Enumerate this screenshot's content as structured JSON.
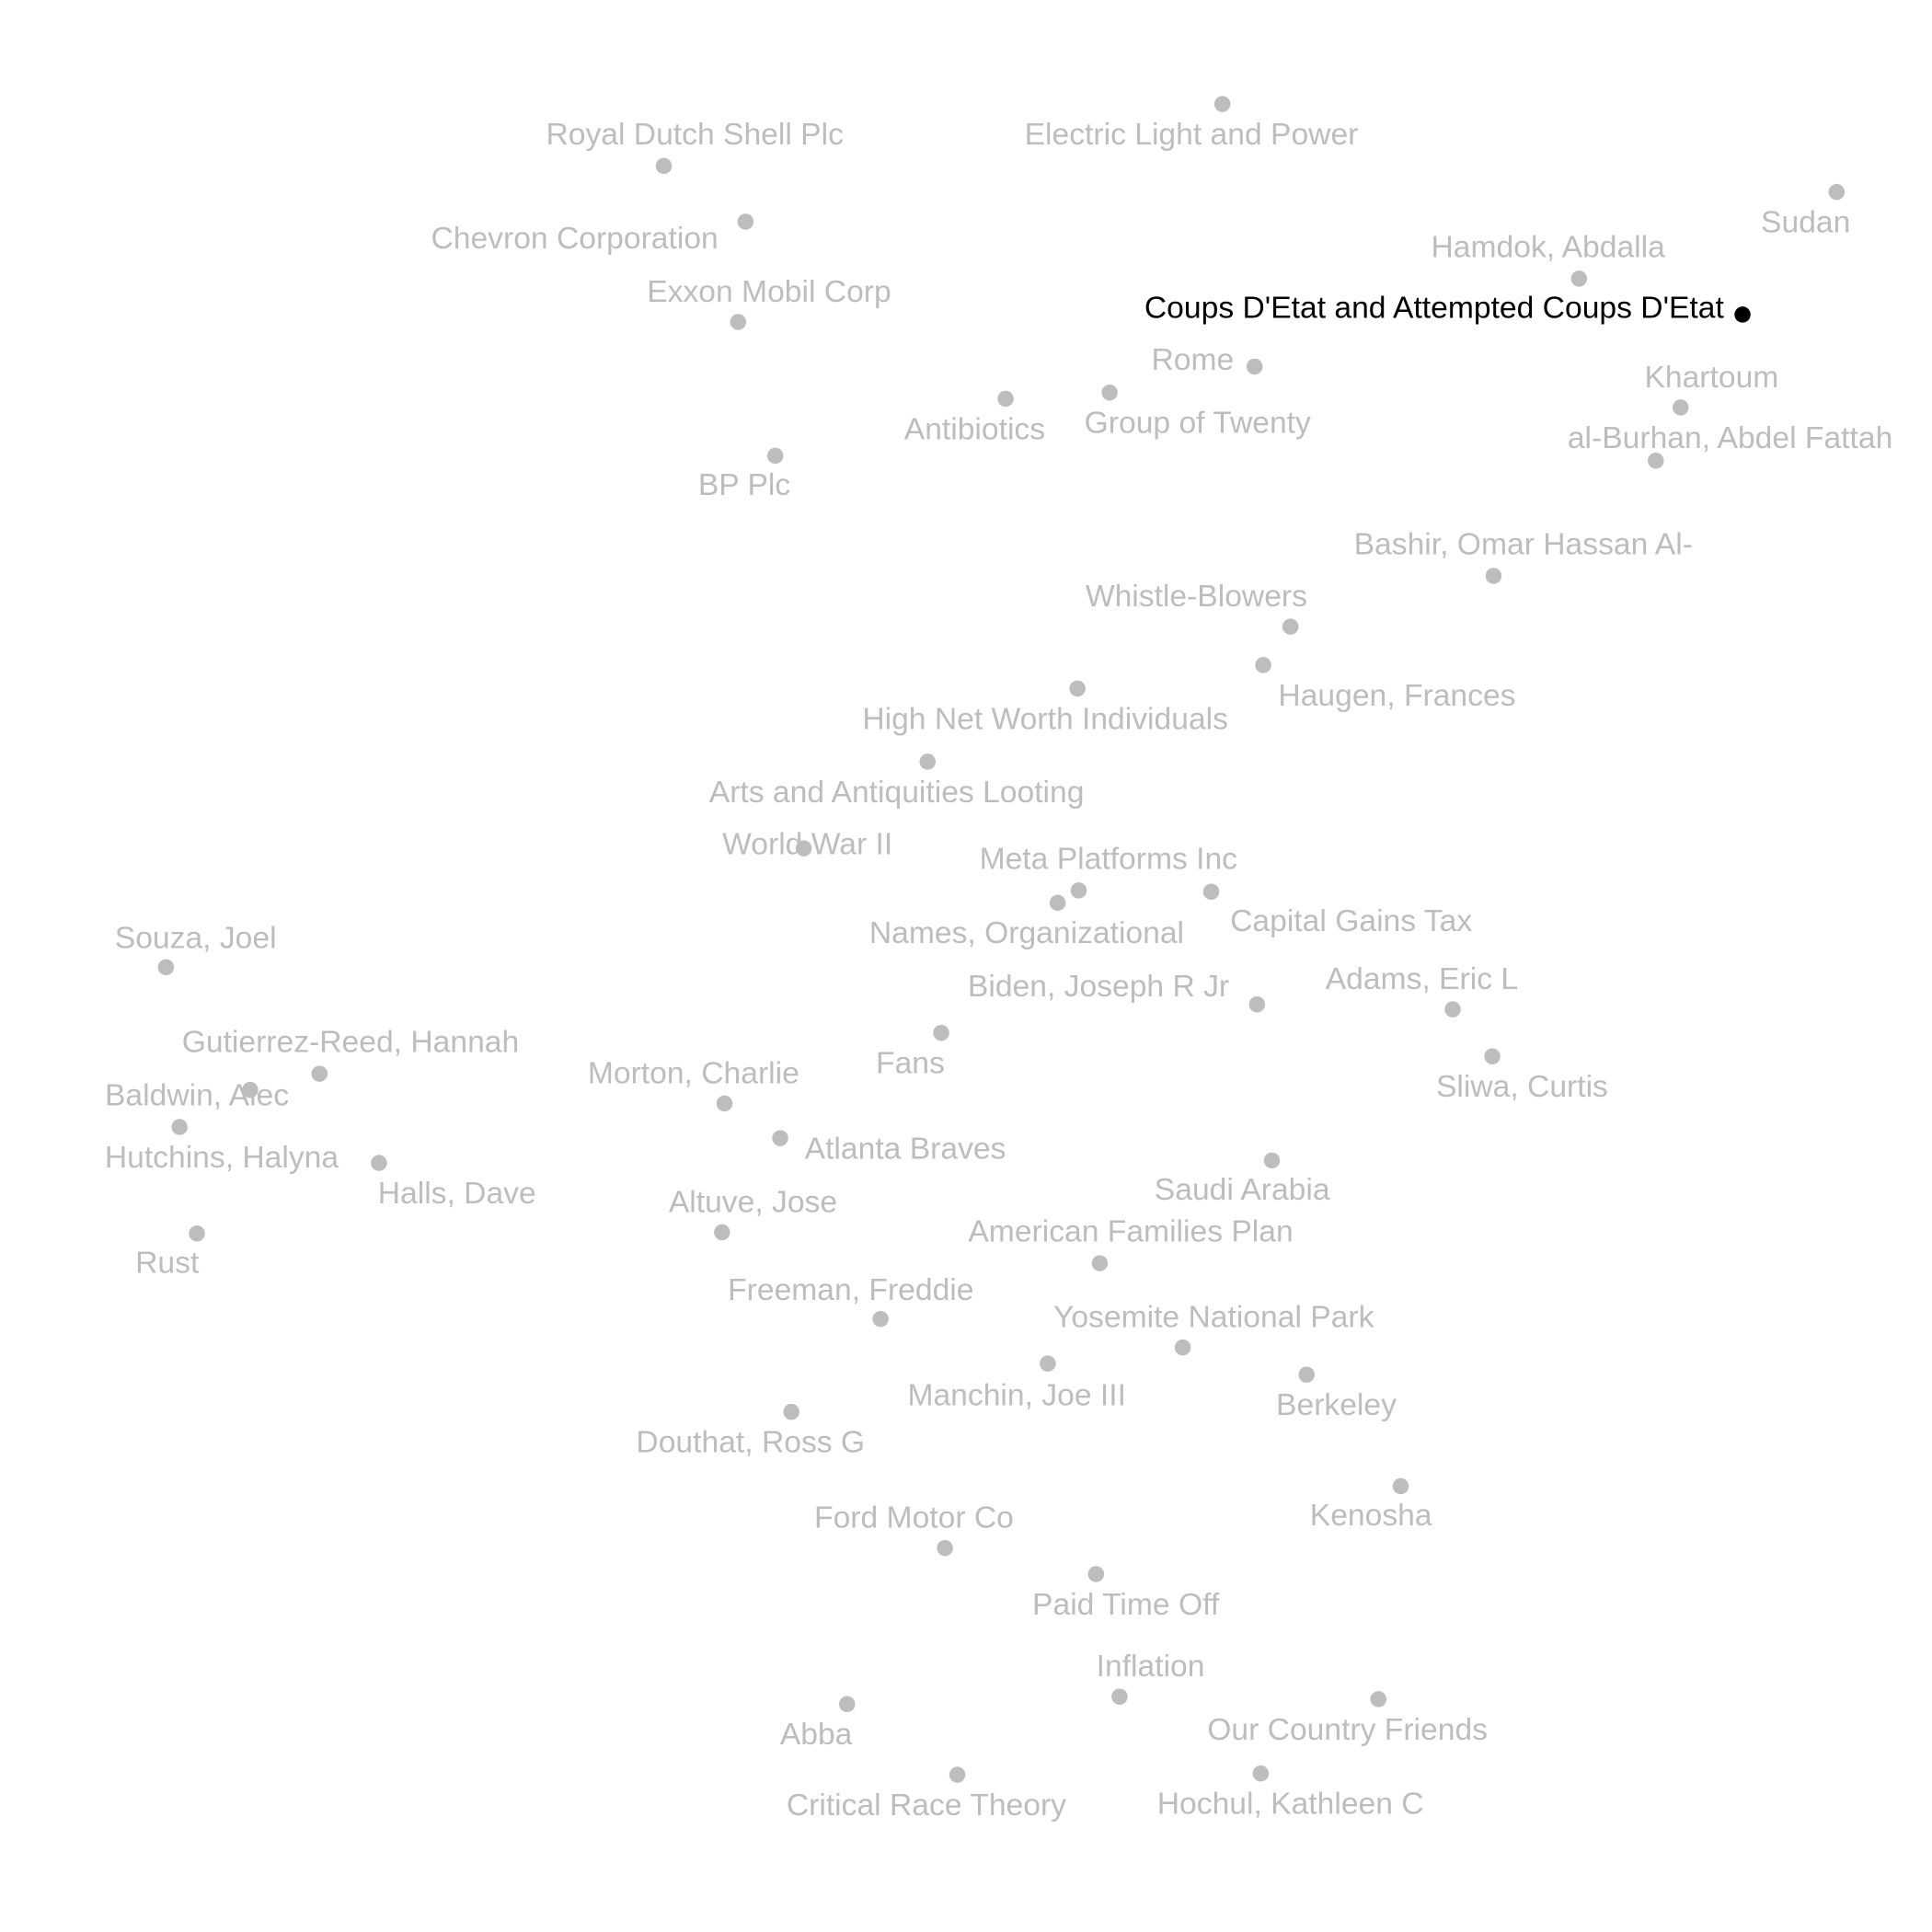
{
  "chart_data": {
    "type": "scatter",
    "title": "",
    "xlabel": "",
    "ylabel": "",
    "grid": false,
    "axes_visible": false,
    "colors": {
      "default": "#bdbdbd",
      "highlight": "#000000"
    },
    "highlighted": "Coups D'Etat and Attempted Coups D'Etat",
    "points": [
      {
        "label": "Electric Light and Power",
        "x": 2.07,
        "y": 6.96
      },
      {
        "label": "Royal Dutch Shell Plc",
        "x": -2.44,
        "y": 6.46
      },
      {
        "label": "Chevron Corporation",
        "x": -1.78,
        "y": 6.01
      },
      {
        "label": "Exxon Mobil Corp",
        "x": -1.84,
        "y": 5.2
      },
      {
        "label": "Sudan",
        "x": 7.03,
        "y": 6.25
      },
      {
        "label": "Hamdok, Abdalla",
        "x": 4.95,
        "y": 5.55
      },
      {
        "label": "Coups D'Etat and Attempted Coups D'Etat",
        "x": 6.27,
        "y": 5.26
      },
      {
        "label": "Rome",
        "x": 2.33,
        "y": 4.84
      },
      {
        "label": "Khartoum",
        "x": 5.77,
        "y": 4.51
      },
      {
        "label": "Antibiotics",
        "x": 0.32,
        "y": 4.58
      },
      {
        "label": "Group of Twenty",
        "x": 1.16,
        "y": 4.63
      },
      {
        "label": "al-Burhan, Abdel Fattah",
        "x": 5.57,
        "y": 4.08
      },
      {
        "label": "BP Plc",
        "x": -1.54,
        "y": 4.12
      },
      {
        "label": "Bashir, Omar Hassan Al-",
        "x": 4.26,
        "y": 3.15
      },
      {
        "label": "Whistle-Blowers",
        "x": 2.62,
        "y": 2.74
      },
      {
        "label": "Haugen, Frances",
        "x": 2.4,
        "y": 2.43
      },
      {
        "label": "High Net Worth Individuals",
        "x": 0.9,
        "y": 2.24
      },
      {
        "label": "Arts and Antiquities Looting",
        "x": -0.31,
        "y": 1.65
      },
      {
        "label": "World War II",
        "x": -1.31,
        "y": 0.95
      },
      {
        "label": "Meta Platforms Inc",
        "x": 0.91,
        "y": 0.61
      },
      {
        "label": "Names, Organizational",
        "x": 0.74,
        "y": 0.51
      },
      {
        "label": "Capital Gains Tax",
        "x": 1.98,
        "y": 0.6
      },
      {
        "label": "Souza, Joel",
        "x": -6.46,
        "y": -0.01
      },
      {
        "label": "Biden, Joseph R Jr",
        "x": 2.35,
        "y": -0.31
      },
      {
        "label": "Adams, Eric L",
        "x": 3.93,
        "y": -0.35
      },
      {
        "label": "Fans",
        "x": -0.2,
        "y": -0.54
      },
      {
        "label": "Gutierrez-Reed, Hannah",
        "x": -5.22,
        "y": -0.87
      },
      {
        "label": "Baldwin, Alec",
        "x": -5.78,
        "y": -1.0
      },
      {
        "label": "Morton, Charlie",
        "x": -1.95,
        "y": -1.11
      },
      {
        "label": "Sliwa, Curtis",
        "x": 4.25,
        "y": -0.73
      },
      {
        "label": "Hutchins, Halyna",
        "x": -6.35,
        "y": -1.3
      },
      {
        "label": "Atlanta Braves",
        "x": -1.5,
        "y": -1.39
      },
      {
        "label": "Halls, Dave",
        "x": -4.74,
        "y": -1.59
      },
      {
        "label": "Saudi Arabia",
        "x": 2.47,
        "y": -1.57
      },
      {
        "label": "Altuve, Jose",
        "x": -1.97,
        "y": -2.15
      },
      {
        "label": "Rust",
        "x": -6.21,
        "y": -2.16
      },
      {
        "label": "American Families Plan",
        "x": 1.08,
        "y": -2.4
      },
      {
        "label": "Freeman, Freddie",
        "x": -0.69,
        "y": -2.85
      },
      {
        "label": "Yosemite National Park",
        "x": 1.75,
        "y": -3.08
      },
      {
        "label": "Manchin, Joe III",
        "x": 0.66,
        "y": -3.21
      },
      {
        "label": "Berkeley",
        "x": 2.75,
        "y": -3.3
      },
      {
        "label": "Douthat, Ross G",
        "x": -1.41,
        "y": -3.6
      },
      {
        "label": "Kenosha",
        "x": 3.51,
        "y": -4.2
      },
      {
        "label": "Ford Motor Co",
        "x": -0.17,
        "y": -4.7
      },
      {
        "label": "Paid Time Off",
        "x": 1.05,
        "y": -4.91
      },
      {
        "label": "Inflation",
        "x": 1.24,
        "y": -5.9
      },
      {
        "label": "Our Country Friends",
        "x": 3.33,
        "y": -5.92
      },
      {
        "label": "Abba",
        "x": -0.96,
        "y": -5.96
      },
      {
        "label": "Critical Race Theory",
        "x": -0.07,
        "y": -6.53
      },
      {
        "label": "Hochul, Kathleen C",
        "x": 2.38,
        "y": -6.52
      }
    ]
  }
}
